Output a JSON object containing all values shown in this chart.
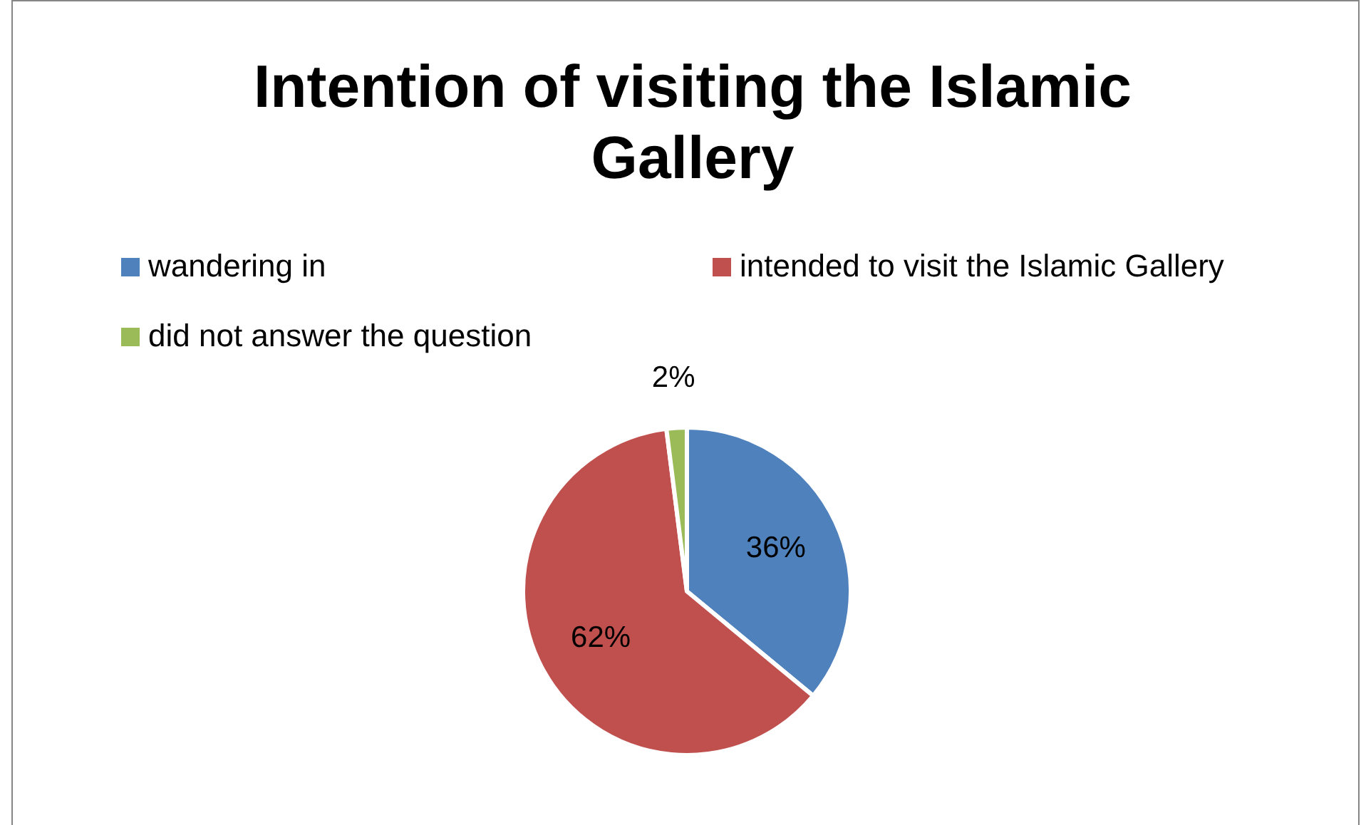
{
  "chart_data": {
    "type": "pie",
    "title": "Intention of visiting the Islamic Gallery",
    "categories": [
      "wandering in",
      "intended to visit the Islamic Gallery",
      "did not answer the question"
    ],
    "values": [
      36,
      62,
      2
    ],
    "colors": [
      "#4f81bd",
      "#c0504d",
      "#9bbb59"
    ],
    "value_labels": [
      "36%",
      "62%",
      "2%"
    ],
    "legend": "top"
  }
}
